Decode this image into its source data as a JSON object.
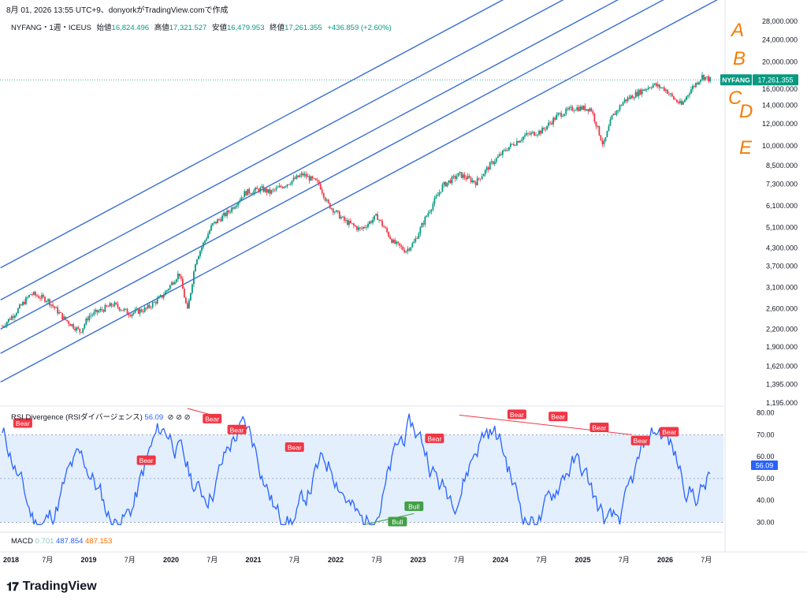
{
  "header": {
    "text": "8月 01, 2026 13:55 UTC+9、donyorkがTradingView.comで作成"
  },
  "legend": {
    "symbol": "NYFANG・1週・ICEUS",
    "open_label": "始値",
    "open": "16,824.496",
    "high_label": "高値",
    "high": "17,321.527",
    "low_label": "安値",
    "low": "16,479.953",
    "close_label": "終値",
    "close": "17,261.355",
    "change": "+436.859 (+2.60%)"
  },
  "price_tag": {
    "symbol": "NYFANG",
    "value": "17,261.355"
  },
  "channel_labels": [
    "A",
    "B",
    "C",
    "D",
    "E"
  ],
  "rsi_panel": {
    "label": "RSI Divergence (RSIダイバージェンス)",
    "value": "56.09"
  },
  "macd_panel": {
    "label": "MACD",
    "v1": "0.701",
    "v2": "487.854",
    "v3": "487.153"
  },
  "brand": {
    "name": "TradingView"
  },
  "colors": {
    "up": "#089981",
    "down": "#f23645",
    "channel": "#3a6fd1",
    "rsi": "#2962ff",
    "bear": "#f23645",
    "bull": "#43a047",
    "annot": "#f57c00"
  },
  "chart_data": [
    {
      "type": "candlestick",
      "scale": "log",
      "ylim": [
        1195,
        28000
      ],
      "y_ticks": [
        "28,000.000",
        "24,000.000",
        "20,000.000",
        "16,000.000",
        "14,000.000",
        "12,000.000",
        "10,000.000",
        "8,500.000",
        "7,300.000",
        "6,100.000",
        "5,100.000",
        "4,300.000",
        "3,700.000",
        "3,100.000",
        "2,600.000",
        "2,200.000",
        "1,900.000",
        "1,620.000",
        "1,395.000",
        "1,195.000"
      ],
      "y_tick_values": [
        28000,
        24000,
        20000,
        16000,
        14000,
        12000,
        10000,
        8500,
        7300,
        6100,
        5100,
        4300,
        3700,
        3100,
        2600,
        2200,
        1900,
        1620,
        1395,
        1195
      ],
      "x_labels": [
        "2018",
        "7月",
        "2019",
        "7月",
        "2020",
        "7月",
        "2021",
        "7月",
        "2022",
        "7月",
        "2023",
        "7月",
        "2024",
        "7月",
        "2025",
        "7月",
        "2026",
        "7月"
      ],
      "x_label_times": [
        2018.0,
        2018.5,
        2019.0,
        2019.5,
        2020.0,
        2020.5,
        2021.0,
        2021.5,
        2022.0,
        2022.5,
        2023.0,
        2023.5,
        2024.0,
        2024.5,
        2025.0,
        2025.5,
        2026.0,
        2026.5
      ],
      "series": {
        "t": [
          2017.95,
          2018.1,
          2018.3,
          2018.5,
          2018.7,
          2018.9,
          2019.0,
          2019.3,
          2019.5,
          2019.7,
          2019.9,
          2020.1,
          2020.2,
          2020.3,
          2020.5,
          2020.7,
          2020.9,
          2021.1,
          2021.2,
          2021.4,
          2021.6,
          2021.8,
          2021.9,
          2022.1,
          2022.3,
          2022.5,
          2022.7,
          2022.85,
          2022.95,
          2023.1,
          2023.3,
          2023.5,
          2023.7,
          2023.9,
          2024.1,
          2024.3,
          2024.5,
          2024.7,
          2024.9,
          2025.1,
          2025.25,
          2025.35,
          2025.5,
          2025.7,
          2025.85,
          2026.0,
          2026.1,
          2026.2,
          2026.3,
          2026.45,
          2026.55
        ],
        "close": [
          2250,
          2500,
          2950,
          2800,
          2400,
          2150,
          2450,
          2700,
          2500,
          2600,
          2900,
          3500,
          2550,
          3900,
          5200,
          5800,
          6800,
          7000,
          6800,
          7300,
          7900,
          7300,
          6200,
          5400,
          5000,
          5600,
          4500,
          4200,
          4500,
          5600,
          7200,
          7900,
          7400,
          8700,
          9900,
          10900,
          11300,
          12900,
          13700,
          13600,
          10000,
          12600,
          14500,
          15700,
          16600,
          16000,
          14800,
          14000,
          15800,
          17800,
          17260
        ]
      }
    },
    {
      "type": "line",
      "name": "RSI Divergence",
      "ylim": [
        28,
        82
      ],
      "y_ticks": [
        "80.00",
        "70.00",
        "60.00",
        "50.00",
        "40.00",
        "30.00"
      ],
      "y_tick_values": [
        80,
        70,
        60,
        50,
        40,
        30
      ],
      "band": [
        30,
        70
      ],
      "last_value": "56.09",
      "labels": [
        {
          "text": "Bear",
          "t": 2018.2,
          "v": 75
        },
        {
          "text": "Bear",
          "t": 2019.7,
          "v": 58
        },
        {
          "text": "Bear",
          "t": 2020.5,
          "v": 77
        },
        {
          "text": "Bear",
          "t": 2020.8,
          "v": 72
        },
        {
          "text": "Bear",
          "t": 2021.5,
          "v": 64
        },
        {
          "text": "Bear",
          "t": 2023.2,
          "v": 68
        },
        {
          "text": "Bear",
          "t": 2024.2,
          "v": 79
        },
        {
          "text": "Bear",
          "t": 2024.7,
          "v": 78
        },
        {
          "text": "Bear",
          "t": 2025.2,
          "v": 73
        },
        {
          "text": "Bear",
          "t": 2025.7,
          "v": 67
        },
        {
          "text": "Bear",
          "t": 2026.05,
          "v": 71
        },
        {
          "text": "Bull",
          "t": 2022.95,
          "v": 37
        },
        {
          "text": "Bull",
          "t": 2022.75,
          "v": 30
        }
      ]
    }
  ]
}
